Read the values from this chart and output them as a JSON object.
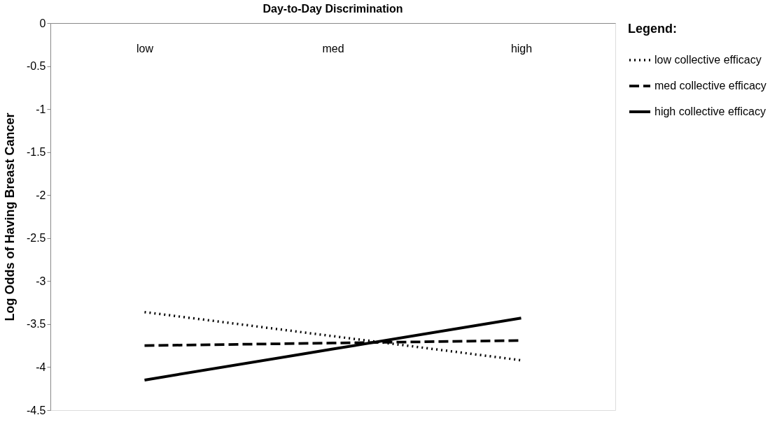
{
  "chart_data": {
    "type": "line",
    "title": "Day-to-Day Discrimination",
    "ylabel": "Log Odds of Having Breast Cancer",
    "legend_title": "Legend:",
    "categories": [
      "low",
      "med",
      "high"
    ],
    "series": [
      {
        "name": "low collective efficacy",
        "color": "#000000",
        "line_style": "dotted",
        "values": [
          -3.36,
          -3.64,
          -3.92
        ]
      },
      {
        "name": "med collective efficacy",
        "color": "#000000",
        "line_style": "dashed",
        "values": [
          -3.75,
          -3.72,
          -3.69
        ]
      },
      {
        "name": "high collective efficacy",
        "color": "#000000",
        "line_style": "solid",
        "values": [
          -4.15,
          -3.79,
          -3.43
        ]
      }
    ],
    "ylim": [
      -4.5,
      0
    ],
    "yticks": [
      0,
      -0.5,
      -1,
      -1.5,
      -2,
      -2.5,
      -3,
      -3.5,
      -4,
      -4.5
    ],
    "grid": false,
    "legend": "right",
    "marker": "none"
  }
}
